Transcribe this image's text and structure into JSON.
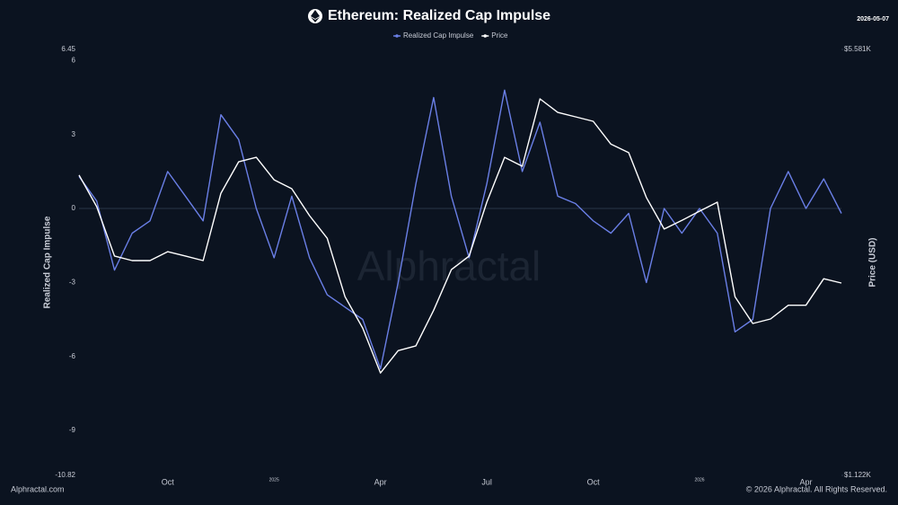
{
  "chart_data": {
    "type": "line",
    "title": "Ethereum: Realized Cap Impulse",
    "date": "2026-05-07",
    "y_label": "Realized Cap Impulse",
    "y2_label": "Price (USD)",
    "watermark": "Alphractal",
    "source": "Alphractal.com",
    "copyright": "© 2026 Alphractal. All Rights Reserved.",
    "categories": [
      null,
      null,
      null,
      null,
      null,
      "Oct",
      null,
      null,
      null,
      null,
      null,
      "2025",
      null,
      null,
      null,
      null,
      null,
      "Apr",
      null,
      null,
      null,
      null,
      null,
      "Jul",
      null,
      null,
      null,
      null,
      null,
      "Oct",
      null,
      null,
      null,
      null,
      null,
      "2026",
      null,
      null,
      null,
      null,
      null,
      "Apr",
      null,
      null
    ],
    "series": [
      {
        "name": "Realized Cap Impulse",
        "color": "#6a7fe6",
        "axis": "y",
        "values": [
          1.3,
          0.3,
          -2.5,
          -1,
          -0.5,
          1.5,
          0.5,
          -0.5,
          3.8,
          2.8,
          0,
          -2,
          0.5,
          -2,
          -3.5,
          -4,
          -4.5,
          -6.5,
          -3,
          1,
          4.5,
          0.5,
          -2,
          1,
          4.8,
          1.5,
          3.5,
          0.5,
          0.2,
          -0.5,
          -1,
          -0.2,
          -3,
          0,
          -1,
          0,
          -1,
          -5,
          -4.5,
          0,
          1.5,
          0,
          1.2,
          -0.2
        ]
      },
      {
        "name": "Price",
        "color": "#ffffff",
        "axis": "y2",
        "values": [
          3477,
          3087,
          2563,
          2519,
          2519,
          2605,
          2563,
          2519,
          3246,
          3655,
          3717,
          3415,
          3303,
          2984,
          2740,
          2199,
          1954,
          1650,
          1795,
          1827,
          2089,
          2435,
          2563,
          3139,
          3717,
          3594,
          4633,
          4402,
          4330,
          4257,
          3907,
          3783,
          3195,
          2837,
          2931,
          3035,
          3139,
          2199,
          1988,
          2022,
          2129,
          2129,
          2353,
          2315
        ]
      }
    ],
    "ylim": [
      -10.82,
      6.45
    ],
    "yticks": [
      -10.82,
      -9,
      -6,
      -3,
      0,
      3,
      6,
      6.45
    ],
    "y2lim": [
      1122,
      5581
    ],
    "y2ticks": [
      {
        "value": 1122,
        "label": "$1.122K"
      },
      {
        "value": 5581,
        "label": "$5.581K"
      }
    ],
    "y2_log": true,
    "zero_line": true,
    "legend": "top"
  }
}
